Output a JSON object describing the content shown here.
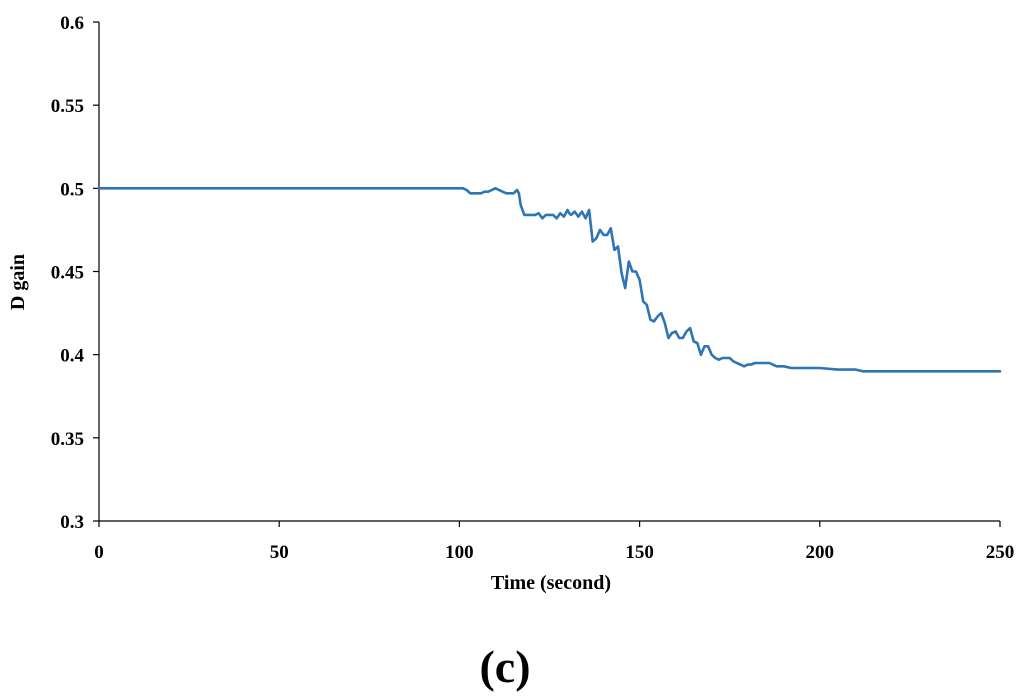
{
  "chart_data": {
    "type": "line",
    "title": "",
    "xlabel": "Time (second)",
    "ylabel": "D gain",
    "panel_label": "(c)",
    "xlim": [
      0,
      250
    ],
    "ylim": [
      0.3,
      0.6
    ],
    "xticks": [
      0,
      50,
      100,
      150,
      200,
      250
    ],
    "yticks": [
      0.3,
      0.35,
      0.4,
      0.45,
      0.5,
      0.55,
      0.6
    ],
    "xtick_labels": [
      "0",
      "50",
      "100",
      "150",
      "200",
      "250"
    ],
    "ytick_labels": [
      "0.3",
      "0.35",
      "0.4",
      "0.45",
      "0.5",
      "0.55",
      "0.6"
    ],
    "grid": false,
    "legend": "none",
    "series": [
      {
        "color": "#2E75B6",
        "x": [
          0,
          101,
          102,
          103,
          106,
          107,
          108,
          109,
          110,
          111,
          112,
          113,
          114,
          115,
          116,
          116.5,
          117,
          118,
          119,
          121,
          122,
          123,
          124,
          125,
          126,
          127,
          128,
          129,
          130,
          130.5,
          131,
          132,
          133,
          134,
          135,
          136,
          137,
          138,
          139,
          140,
          141,
          142,
          143,
          144,
          145,
          146,
          147,
          148,
          149,
          150,
          151,
          152,
          153,
          154,
          155,
          156,
          157,
          158,
          159,
          160,
          161,
          162,
          163,
          164,
          165,
          166,
          167,
          168,
          169,
          170,
          171,
          172,
          173,
          174,
          175,
          176,
          177,
          178,
          179,
          180,
          181,
          182,
          184,
          186,
          188,
          190,
          192,
          194,
          196,
          198,
          200,
          205,
          210,
          212,
          215,
          220,
          230,
          240,
          250
        ],
        "y": [
          0.5,
          0.5,
          0.499,
          0.497,
          0.497,
          0.498,
          0.498,
          0.499,
          0.5,
          0.499,
          0.498,
          0.497,
          0.497,
          0.497,
          0.499,
          0.497,
          0.49,
          0.484,
          0.484,
          0.484,
          0.485,
          0.482,
          0.484,
          0.484,
          0.484,
          0.482,
          0.485,
          0.483,
          0.487,
          0.485,
          0.484,
          0.486,
          0.483,
          0.486,
          0.482,
          0.487,
          0.468,
          0.47,
          0.475,
          0.472,
          0.472,
          0.476,
          0.463,
          0.465,
          0.449,
          0.44,
          0.456,
          0.45,
          0.45,
          0.445,
          0.432,
          0.43,
          0.421,
          0.42,
          0.423,
          0.425,
          0.419,
          0.41,
          0.413,
          0.414,
          0.41,
          0.41,
          0.414,
          0.416,
          0.408,
          0.407,
          0.4,
          0.405,
          0.405,
          0.4,
          0.398,
          0.397,
          0.398,
          0.398,
          0.398,
          0.396,
          0.395,
          0.394,
          0.393,
          0.394,
          0.394,
          0.395,
          0.395,
          0.395,
          0.393,
          0.393,
          0.392,
          0.392,
          0.392,
          0.392,
          0.392,
          0.391,
          0.391,
          0.39,
          0.39,
          0.39,
          0.39,
          0.39,
          0.39
        ]
      }
    ]
  }
}
